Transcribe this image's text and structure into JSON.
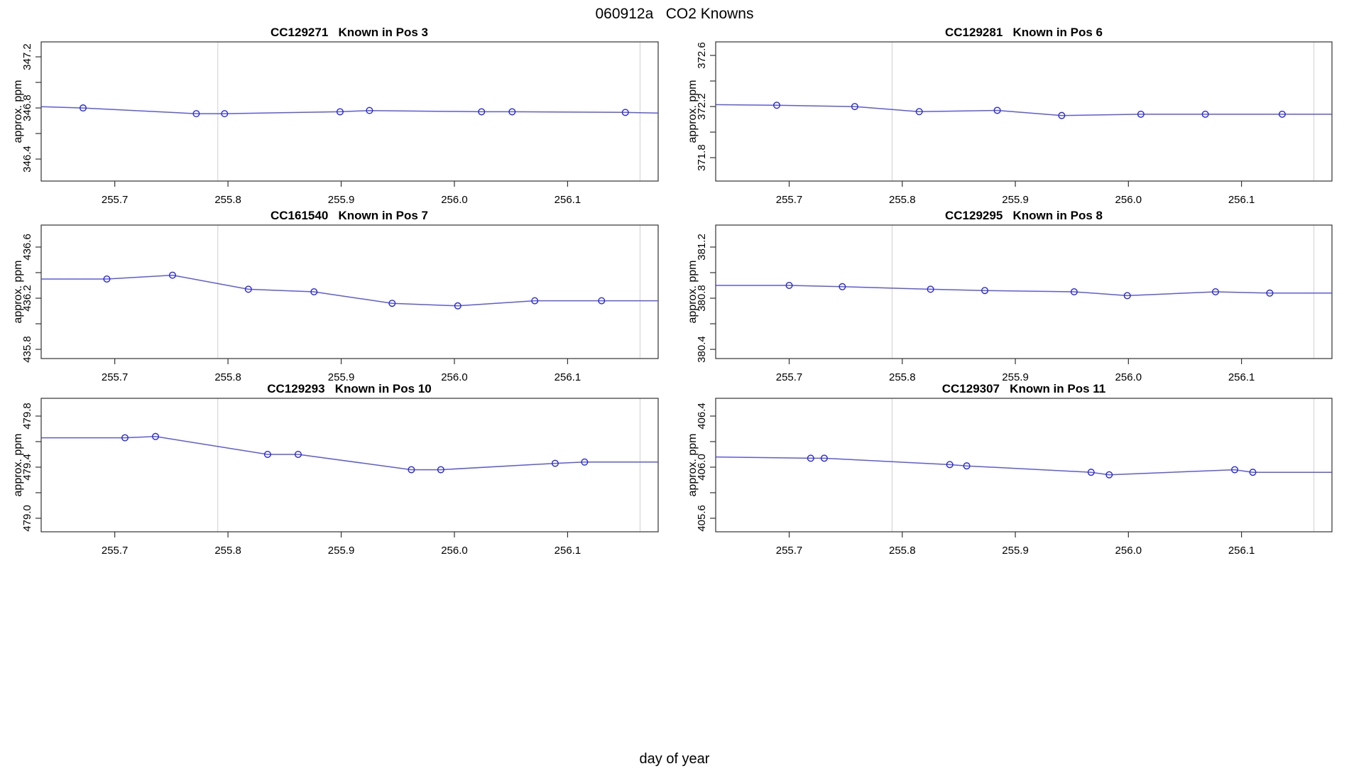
{
  "figure": {
    "title": "060912a   CO2 Knowns",
    "xlabel": "day of year",
    "ylabel": "approx. ppm"
  },
  "colors": {
    "line": "#4343e0",
    "point": "#2525dd",
    "axis": "#333333",
    "event_line": "#d6d6d6",
    "text": "#000000",
    "background": "#ffffff"
  },
  "chart_data": {
    "type": "line",
    "title": "060912a   CO2 Knowns",
    "xlabel": "day of year",
    "ylabel": "approx. ppm",
    "grid": "off",
    "legend": "none",
    "xlim": [
      255.635,
      256.18
    ],
    "x_tick_values": [
      255.7,
      255.8,
      255.9,
      256.0,
      256.1
    ],
    "x_ticks": [
      "255.7",
      "255.8",
      "255.9",
      "256.0",
      "256.1"
    ],
    "event_lines_x": [
      255.791,
      256.164
    ],
    "panels": [
      {
        "title": "CC129271   Known in Pos 3",
        "sample_id": "CC129271",
        "position": 3,
        "ylim": [
          346.228,
          347.317
        ],
        "y_ticks": [
          346.4,
          346.6,
          346.8,
          347.0,
          347.2
        ],
        "y_tick_label_values": [
          346.4,
          346.8,
          347.2
        ],
        "y_tick_labels": [
          "346.4",
          "346.8",
          "347.2"
        ],
        "x": [
          255.672,
          255.772,
          255.797,
          255.899,
          255.925,
          256.024,
          256.051,
          256.151
        ],
        "y": [
          346.8,
          346.755,
          346.755,
          346.77,
          346.78,
          346.77,
          346.77,
          346.765
        ],
        "line_x": [
          255.635,
          255.672,
          255.772,
          255.797,
          255.899,
          255.925,
          256.024,
          256.051,
          256.151,
          256.18
        ],
        "line_y": [
          346.81,
          346.8,
          346.755,
          346.755,
          346.77,
          346.78,
          346.77,
          346.77,
          346.765,
          346.76
        ]
      },
      {
        "title": "CC129281   Known in Pos 6",
        "sample_id": "CC129281",
        "position": 6,
        "ylim": [
          371.617,
          372.706
        ],
        "y_ticks": [
          371.8,
          372.0,
          372.2,
          372.4,
          372.6
        ],
        "y_tick_label_values": [
          371.8,
          372.2,
          372.6
        ],
        "y_tick_labels": [
          "371.8",
          "372.2",
          "372.6"
        ],
        "x": [
          255.689,
          255.758,
          255.815,
          255.884,
          255.941,
          256.011,
          256.068,
          256.136
        ],
        "y": [
          372.21,
          372.2,
          372.16,
          372.17,
          372.13,
          372.14,
          372.14,
          372.14
        ],
        "line_x": [
          255.635,
          255.689,
          255.758,
          255.815,
          255.884,
          255.941,
          256.011,
          256.068,
          256.136,
          256.18
        ],
        "line_y": [
          372.215,
          372.21,
          372.2,
          372.16,
          372.17,
          372.13,
          372.14,
          372.14,
          372.14,
          372.14
        ]
      },
      {
        "title": "CC161540   Known in Pos 7",
        "sample_id": "CC161540",
        "position": 7,
        "ylim": [
          435.728,
          436.772
        ],
        "y_ticks": [
          435.8,
          436.0,
          436.2,
          436.4,
          436.6
        ],
        "y_tick_label_values": [
          435.8,
          436.2,
          436.6
        ],
        "y_tick_labels": [
          "435.8",
          "436.2",
          "436.6"
        ],
        "x": [
          255.693,
          255.751,
          255.818,
          255.876,
          255.945,
          256.003,
          256.071,
          256.13
        ],
        "y": [
          436.35,
          436.38,
          436.27,
          436.25,
          436.16,
          436.14,
          436.18,
          436.18
        ],
        "line_x": [
          255.635,
          255.693,
          255.751,
          255.818,
          255.876,
          255.945,
          256.003,
          256.071,
          256.13,
          256.18
        ],
        "line_y": [
          436.35,
          436.35,
          436.38,
          436.27,
          436.25,
          436.16,
          436.14,
          436.18,
          436.18,
          436.18
        ]
      },
      {
        "title": "CC129295   Known in Pos 8",
        "sample_id": "CC129295",
        "position": 8,
        "ylim": [
          380.328,
          381.372
        ],
        "y_ticks": [
          380.4,
          380.6,
          380.8,
          381.0,
          381.2
        ],
        "y_tick_label_values": [
          380.4,
          380.8,
          381.2
        ],
        "y_tick_labels": [
          "380.4",
          "380.8",
          "381.2"
        ],
        "x": [
          255.7,
          255.747,
          255.825,
          255.873,
          255.952,
          255.999,
          256.077,
          256.125
        ],
        "y": [
          380.9,
          380.89,
          380.87,
          380.86,
          380.85,
          380.82,
          380.85,
          380.84
        ],
        "line_x": [
          255.635,
          255.7,
          255.747,
          255.825,
          255.873,
          255.952,
          255.999,
          256.077,
          256.125,
          256.18
        ],
        "line_y": [
          380.9,
          380.9,
          380.89,
          380.87,
          380.86,
          380.85,
          380.82,
          380.85,
          380.84,
          380.84
        ]
      },
      {
        "title": "CC129293   Known in Pos 10",
        "sample_id": "CC129293",
        "position": 10,
        "ylim": [
          478.894,
          479.939
        ],
        "y_ticks": [
          479.0,
          479.2,
          479.4,
          479.6,
          479.8
        ],
        "y_tick_label_values": [
          479.0,
          479.4,
          479.8
        ],
        "y_tick_labels": [
          "479.0",
          "479.4",
          "479.8"
        ],
        "x": [
          255.709,
          255.736,
          255.835,
          255.862,
          255.962,
          255.988,
          256.089,
          256.115
        ],
        "y": [
          479.63,
          479.64,
          479.5,
          479.5,
          479.38,
          479.38,
          479.43,
          479.44
        ],
        "line_x": [
          255.635,
          255.709,
          255.736,
          255.835,
          255.862,
          255.962,
          255.988,
          256.089,
          256.115,
          256.18
        ],
        "line_y": [
          479.63,
          479.63,
          479.64,
          479.5,
          479.5,
          479.38,
          479.38,
          479.43,
          479.44,
          479.44
        ]
      },
      {
        "title": "CC129307   Known in Pos 11",
        "sample_id": "CC129307",
        "position": 11,
        "ylim": [
          405.494,
          406.539
        ],
        "y_ticks": [
          405.6,
          405.8,
          406.0,
          406.2,
          406.4
        ],
        "y_tick_label_values": [
          405.6,
          406.0,
          406.4
        ],
        "y_tick_labels": [
          "405.6",
          "406.0",
          "406.4"
        ],
        "x": [
          255.719,
          255.731,
          255.842,
          255.857,
          255.967,
          255.983,
          256.094,
          256.11
        ],
        "y": [
          406.07,
          406.07,
          406.02,
          406.01,
          405.96,
          405.94,
          405.98,
          405.96
        ],
        "line_x": [
          255.635,
          255.719,
          255.731,
          255.842,
          255.857,
          255.967,
          255.983,
          256.094,
          256.11,
          256.18
        ],
        "line_y": [
          406.08,
          406.07,
          406.07,
          406.02,
          406.01,
          405.96,
          405.94,
          405.98,
          405.96,
          405.96
        ]
      }
    ]
  }
}
